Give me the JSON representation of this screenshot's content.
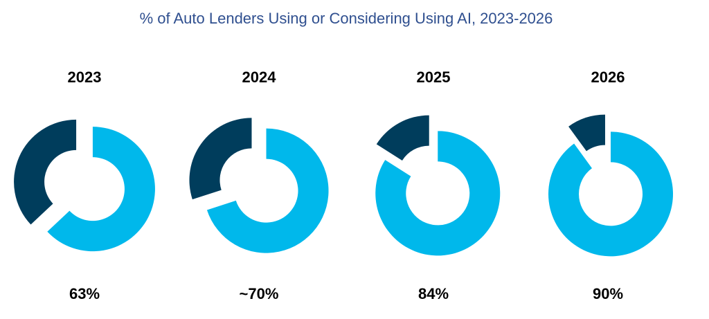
{
  "chart_data": {
    "type": "pie",
    "title": "% of Auto Lenders Using or Considering Using AI, 2023-2026",
    "categories": [
      "2023",
      "2024",
      "2025",
      "2026"
    ],
    "values": [
      63,
      70,
      84,
      90
    ],
    "value_labels": [
      "63%",
      "~70%",
      "84%",
      "90%"
    ],
    "colors": {
      "using": "#00b8eb",
      "remaining": "#003d5c",
      "title": "#2f4f8f"
    }
  }
}
